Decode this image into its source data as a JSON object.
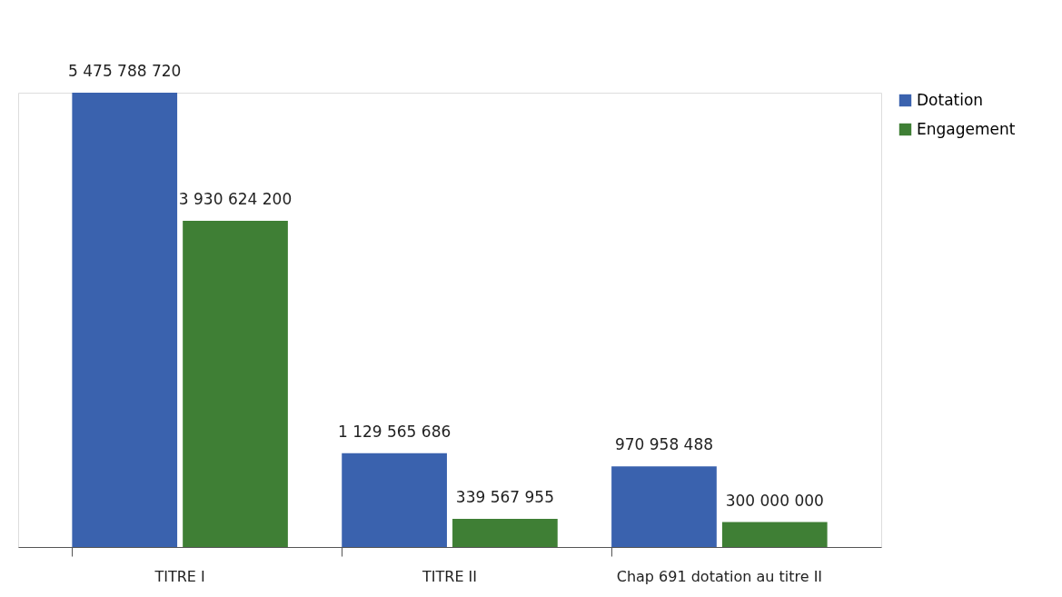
{
  "chart_data": {
    "type": "bar",
    "categories": [
      "TITRE I",
      "TITRE II",
      "Chap 691 dotation au titre II"
    ],
    "series": [
      {
        "name": "Dotation",
        "color": "#3a62ae",
        "values": [
          5475788720,
          1129565686,
          970958488
        ],
        "value_labels": [
          "5 475 788 720",
          "1 129 565 686",
          "970 958 488"
        ]
      },
      {
        "name": "Engagement",
        "color": "#3f7f35",
        "values": [
          3930624200,
          339567955,
          300000000
        ],
        "value_labels": [
          "3 930 624 200",
          "339 567 955",
          "300 000 000"
        ]
      }
    ],
    "legend": "right",
    "grid": false
  }
}
